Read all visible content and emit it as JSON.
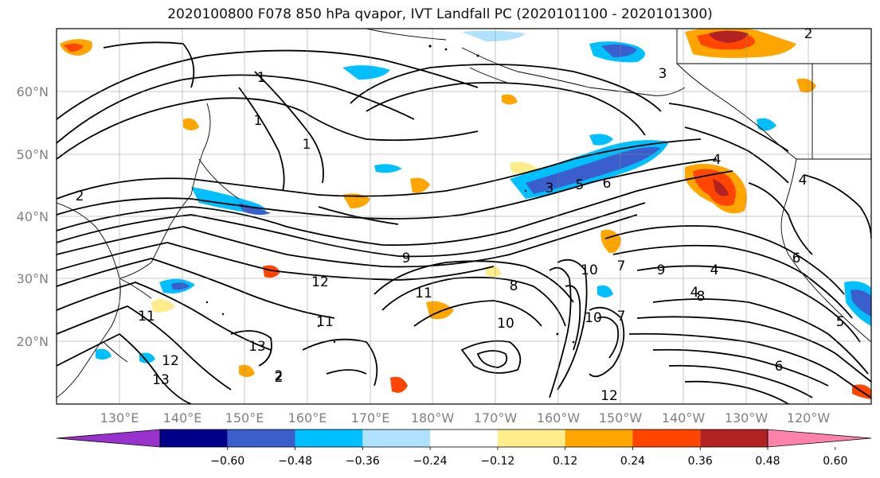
{
  "title": "2020100800 F078 850 hPa qvapor, IVT Landfall PC (2020101100 - 2020101300)",
  "lat_labels": [
    "60°N",
    "50°N",
    "40°N",
    "30°N",
    "20°N"
  ],
  "lon_labels": [
    "130°E",
    "140°E",
    "150°E",
    "160°E",
    "170°E",
    "180°W",
    "170°W",
    "160°W",
    "150°W",
    "140°W",
    "130°W",
    "120°W"
  ],
  "colorbar": {
    "tick_labels": [
      "−0.60",
      "−0.48",
      "−0.36",
      "−0.24",
      "−0.12",
      "0.12",
      "0.24",
      "0.36",
      "0.48",
      "0.60"
    ],
    "colors": [
      "#9932cc",
      "#00008b",
      "#3a5fcd",
      "#00bfff",
      "#b0e2ff",
      "#ffffff",
      "#ffec8b",
      "#ffa500",
      "#ff4500",
      "#b22222",
      "#ff82ab"
    ]
  },
  "contour_labels": [
    "1",
    "1",
    "1",
    "2",
    "2",
    "2",
    "3",
    "3",
    "4",
    "4",
    "5",
    "5",
    "6",
    "6",
    "7",
    "8",
    "8",
    "9",
    "9",
    "10",
    "10",
    "10",
    "11",
    "11",
    "11",
    "12",
    "12",
    "12",
    "13",
    "13",
    "2",
    "4",
    "6",
    "7",
    "4"
  ]
}
